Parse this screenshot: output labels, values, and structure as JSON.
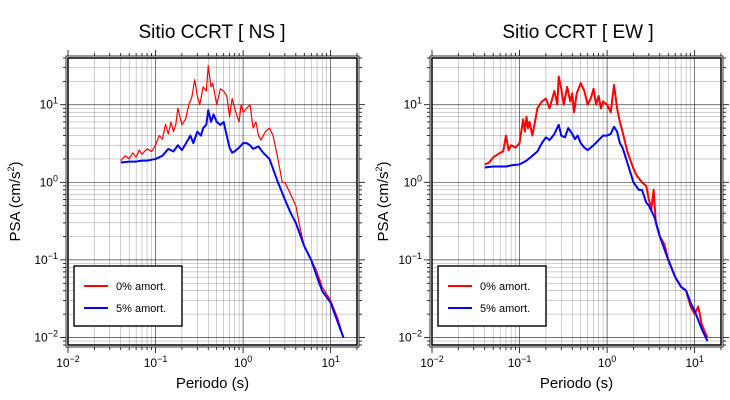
{
  "chart_data": [
    {
      "type": "line",
      "title": "Sitio CCRT [ NS ]",
      "xlabel": "Periodo (s)",
      "ylabel_base": "PSA (cm/s",
      "ylabel_exp": "2",
      "ylabel_tail": ")",
      "xscale": "log",
      "yscale": "log",
      "xlim": [
        0.01,
        20
      ],
      "ylim": [
        0.008,
        40
      ],
      "grid": true,
      "legend_position": "bottom-left",
      "x_ticks": [
        {
          "base": "10",
          "exp": "−2",
          "value": 0.01
        },
        {
          "base": "10",
          "exp": "−1",
          "value": 0.1
        },
        {
          "base": "10",
          "exp": "0",
          "value": 1
        },
        {
          "base": "10",
          "exp": "1",
          "value": 10
        }
      ],
      "y_ticks": [
        {
          "base": "10",
          "exp": "−2",
          "value": 0.01
        },
        {
          "base": "10",
          "exp": "−1",
          "value": 0.1
        },
        {
          "base": "10",
          "exp": "0",
          "value": 1
        },
        {
          "base": "10",
          "exp": "1",
          "value": 10
        }
      ],
      "series": [
        {
          "name": "0% amort.",
          "color": "#ff0000",
          "width": 1.2,
          "points": [
            [
              0.04,
              1.9
            ],
            [
              0.045,
              2.2
            ],
            [
              0.05,
              2.0
            ],
            [
              0.055,
              2.4
            ],
            [
              0.06,
              2.1
            ],
            [
              0.065,
              2.6
            ],
            [
              0.07,
              2.3
            ],
            [
              0.08,
              2.7
            ],
            [
              0.09,
              2.5
            ],
            [
              0.1,
              3.0
            ],
            [
              0.11,
              4.0
            ],
            [
              0.12,
              3.6
            ],
            [
              0.13,
              5.6
            ],
            [
              0.14,
              4.2
            ],
            [
              0.15,
              6.0
            ],
            [
              0.16,
              4.5
            ],
            [
              0.17,
              5.5
            ],
            [
              0.18,
              9.0
            ],
            [
              0.2,
              5.5
            ],
            [
              0.22,
              6.5
            ],
            [
              0.24,
              10.0
            ],
            [
              0.26,
              12.5
            ],
            [
              0.28,
              21.0
            ],
            [
              0.3,
              13.0
            ],
            [
              0.32,
              10.0
            ],
            [
              0.35,
              17.0
            ],
            [
              0.38,
              15.0
            ],
            [
              0.4,
              32.0
            ],
            [
              0.43,
              17.0
            ],
            [
              0.45,
              19.0
            ],
            [
              0.5,
              10.0
            ],
            [
              0.55,
              16.0
            ],
            [
              0.6,
              15.0
            ],
            [
              0.65,
              13.0
            ],
            [
              0.7,
              7.0
            ],
            [
              0.75,
              12.0
            ],
            [
              0.8,
              9.0
            ],
            [
              0.9,
              6.0
            ],
            [
              0.95,
              10.0
            ],
            [
              1.0,
              8.0
            ],
            [
              1.1,
              9.0
            ],
            [
              1.2,
              10.0
            ],
            [
              1.3,
              5.0
            ],
            [
              1.4,
              6.0
            ],
            [
              1.5,
              4.0
            ],
            [
              1.6,
              3.5
            ],
            [
              1.8,
              4.5
            ],
            [
              2.0,
              5.0
            ],
            [
              2.2,
              4.0
            ],
            [
              2.5,
              2.0
            ],
            [
              2.8,
              1.0
            ],
            [
              3.0,
              1.0
            ],
            [
              3.5,
              0.7
            ],
            [
              4.0,
              0.5
            ],
            [
              4.5,
              0.25
            ],
            [
              5.0,
              0.15
            ],
            [
              6.0,
              0.1
            ],
            [
              7.0,
              0.07
            ],
            [
              8.0,
              0.045
            ],
            [
              10.0,
              0.03
            ],
            [
              12.0,
              0.018
            ],
            [
              14.0,
              0.01
            ]
          ]
        },
        {
          "name": "5% amort.",
          "color": "#0000ff",
          "width": 2,
          "points": [
            [
              0.04,
              1.8
            ],
            [
              0.05,
              1.85
            ],
            [
              0.06,
              1.85
            ],
            [
              0.07,
              1.9
            ],
            [
              0.08,
              1.9
            ],
            [
              0.1,
              2.0
            ],
            [
              0.12,
              2.2
            ],
            [
              0.14,
              2.7
            ],
            [
              0.16,
              2.5
            ],
            [
              0.18,
              3.0
            ],
            [
              0.2,
              2.6
            ],
            [
              0.22,
              3.1
            ],
            [
              0.25,
              4.0
            ],
            [
              0.27,
              3.2
            ],
            [
              0.3,
              4.5
            ],
            [
              0.33,
              4.0
            ],
            [
              0.35,
              5.0
            ],
            [
              0.38,
              5.5
            ],
            [
              0.4,
              8.5
            ],
            [
              0.43,
              6.0
            ],
            [
              0.46,
              7.5
            ],
            [
              0.5,
              6.0
            ],
            [
              0.55,
              5.5
            ],
            [
              0.6,
              6.0
            ],
            [
              0.65,
              4.0
            ],
            [
              0.7,
              2.8
            ],
            [
              0.75,
              2.4
            ],
            [
              0.8,
              2.5
            ],
            [
              0.9,
              2.8
            ],
            [
              1.0,
              3.2
            ],
            [
              1.1,
              3.2
            ],
            [
              1.2,
              3.0
            ],
            [
              1.3,
              2.7
            ],
            [
              1.5,
              2.9
            ],
            [
              1.7,
              2.4
            ],
            [
              2.0,
              2.0
            ],
            [
              2.5,
              1.0
            ],
            [
              3.0,
              0.6
            ],
            [
              3.5,
              0.4
            ],
            [
              4.0,
              0.3
            ],
            [
              5.0,
              0.15
            ],
            [
              6.0,
              0.1
            ],
            [
              7.0,
              0.06
            ],
            [
              8.0,
              0.04
            ],
            [
              10.0,
              0.028
            ],
            [
              12.0,
              0.016
            ],
            [
              14.0,
              0.01
            ]
          ]
        }
      ]
    },
    {
      "type": "line",
      "title": "Sitio CCRT [ EW ]",
      "xlabel": "Periodo (s)",
      "ylabel_base": "PSA (cm/s",
      "ylabel_exp": "2",
      "ylabel_tail": ")",
      "xscale": "log",
      "yscale": "log",
      "xlim": [
        0.01,
        20
      ],
      "ylim": [
        0.008,
        40
      ],
      "grid": true,
      "legend_position": "bottom-left",
      "x_ticks": [
        {
          "base": "10",
          "exp": "−2",
          "value": 0.01
        },
        {
          "base": "10",
          "exp": "−1",
          "value": 0.1
        },
        {
          "base": "10",
          "exp": "0",
          "value": 1
        },
        {
          "base": "10",
          "exp": "1",
          "value": 10
        }
      ],
      "y_ticks": [
        {
          "base": "10",
          "exp": "−2",
          "value": 0.01
        },
        {
          "base": "10",
          "exp": "−1",
          "value": 0.1
        },
        {
          "base": "10",
          "exp": "0",
          "value": 1
        },
        {
          "base": "10",
          "exp": "1",
          "value": 10
        }
      ],
      "series": [
        {
          "name": "0% amort.",
          "color": "#ff0000",
          "width": 2,
          "points": [
            [
              0.04,
              1.7
            ],
            [
              0.045,
              1.8
            ],
            [
              0.05,
              2.1
            ],
            [
              0.06,
              2.4
            ],
            [
              0.065,
              2.5
            ],
            [
              0.07,
              4.0
            ],
            [
              0.075,
              2.6
            ],
            [
              0.08,
              3.0
            ],
            [
              0.09,
              2.8
            ],
            [
              0.1,
              3.2
            ],
            [
              0.11,
              6.5
            ],
            [
              0.115,
              4.5
            ],
            [
              0.12,
              7.0
            ],
            [
              0.125,
              5.0
            ],
            [
              0.13,
              6.0
            ],
            [
              0.14,
              4.0
            ],
            [
              0.15,
              6.0
            ],
            [
              0.16,
              9.0
            ],
            [
              0.18,
              11.0
            ],
            [
              0.2,
              12.0
            ],
            [
              0.22,
              9.0
            ],
            [
              0.25,
              15.0
            ],
            [
              0.27,
              10.0
            ],
            [
              0.28,
              23.0
            ],
            [
              0.3,
              16.0
            ],
            [
              0.32,
              10.0
            ],
            [
              0.35,
              17.0
            ],
            [
              0.38,
              11.0
            ],
            [
              0.4,
              14.0
            ],
            [
              0.42,
              8.0
            ],
            [
              0.45,
              14.0
            ],
            [
              0.5,
              19.0
            ],
            [
              0.55,
              15.0
            ],
            [
              0.6,
              10.0
            ],
            [
              0.65,
              12.0
            ],
            [
              0.7,
              16.0
            ],
            [
              0.75,
              10.0
            ],
            [
              0.8,
              13.0
            ],
            [
              0.85,
              9.0
            ],
            [
              0.9,
              11.0
            ],
            [
              1.0,
              10.0
            ],
            [
              1.1,
              8.0
            ],
            [
              1.2,
              18.0
            ],
            [
              1.3,
              9.0
            ],
            [
              1.4,
              6.0
            ],
            [
              1.5,
              4.5
            ],
            [
              1.7,
              2.5
            ],
            [
              2.0,
              1.5
            ],
            [
              2.2,
              1.2
            ],
            [
              2.5,
              1.0
            ],
            [
              2.8,
              0.9
            ],
            [
              3.0,
              0.6
            ],
            [
              3.2,
              0.45
            ],
            [
              3.4,
              0.8
            ],
            [
              3.6,
              0.3
            ],
            [
              4.0,
              0.2
            ],
            [
              4.5,
              0.16
            ],
            [
              5.0,
              0.1
            ],
            [
              6.0,
              0.06
            ],
            [
              7.0,
              0.045
            ],
            [
              8.0,
              0.04
            ],
            [
              9.0,
              0.025
            ],
            [
              10.0,
              0.02
            ],
            [
              11.0,
              0.025
            ],
            [
              12.0,
              0.015
            ],
            [
              13.0,
              0.012
            ],
            [
              14.0,
              0.01
            ]
          ]
        },
        {
          "name": "5% amort.",
          "color": "#0000ff",
          "width": 2,
          "points": [
            [
              0.04,
              1.55
            ],
            [
              0.05,
              1.6
            ],
            [
              0.06,
              1.6
            ],
            [
              0.07,
              1.6
            ],
            [
              0.08,
              1.65
            ],
            [
              0.1,
              1.7
            ],
            [
              0.12,
              1.9
            ],
            [
              0.14,
              2.2
            ],
            [
              0.16,
              2.5
            ],
            [
              0.18,
              3.2
            ],
            [
              0.2,
              3.8
            ],
            [
              0.22,
              3.5
            ],
            [
              0.25,
              4.2
            ],
            [
              0.28,
              5.5
            ],
            [
              0.3,
              4.0
            ],
            [
              0.33,
              3.8
            ],
            [
              0.36,
              5.0
            ],
            [
              0.4,
              4.2
            ],
            [
              0.43,
              3.6
            ],
            [
              0.46,
              4.0
            ],
            [
              0.5,
              3.2
            ],
            [
              0.55,
              2.8
            ],
            [
              0.6,
              2.6
            ],
            [
              0.7,
              3.0
            ],
            [
              0.8,
              3.5
            ],
            [
              0.9,
              4.0
            ],
            [
              1.0,
              4.0
            ],
            [
              1.1,
              4.2
            ],
            [
              1.2,
              5.2
            ],
            [
              1.3,
              4.5
            ],
            [
              1.4,
              3.2
            ],
            [
              1.5,
              2.8
            ],
            [
              1.7,
              1.8
            ],
            [
              2.0,
              1.0
            ],
            [
              2.3,
              0.8
            ],
            [
              2.5,
              0.8
            ],
            [
              2.8,
              0.55
            ],
            [
              3.0,
              0.5
            ],
            [
              3.5,
              0.35
            ],
            [
              4.0,
              0.2
            ],
            [
              5.0,
              0.1
            ],
            [
              6.0,
              0.06
            ],
            [
              7.0,
              0.045
            ],
            [
              8.0,
              0.04
            ],
            [
              9.0,
              0.028
            ],
            [
              10.0,
              0.022
            ],
            [
              12.0,
              0.013
            ],
            [
              14.0,
              0.009
            ]
          ]
        }
      ]
    }
  ]
}
